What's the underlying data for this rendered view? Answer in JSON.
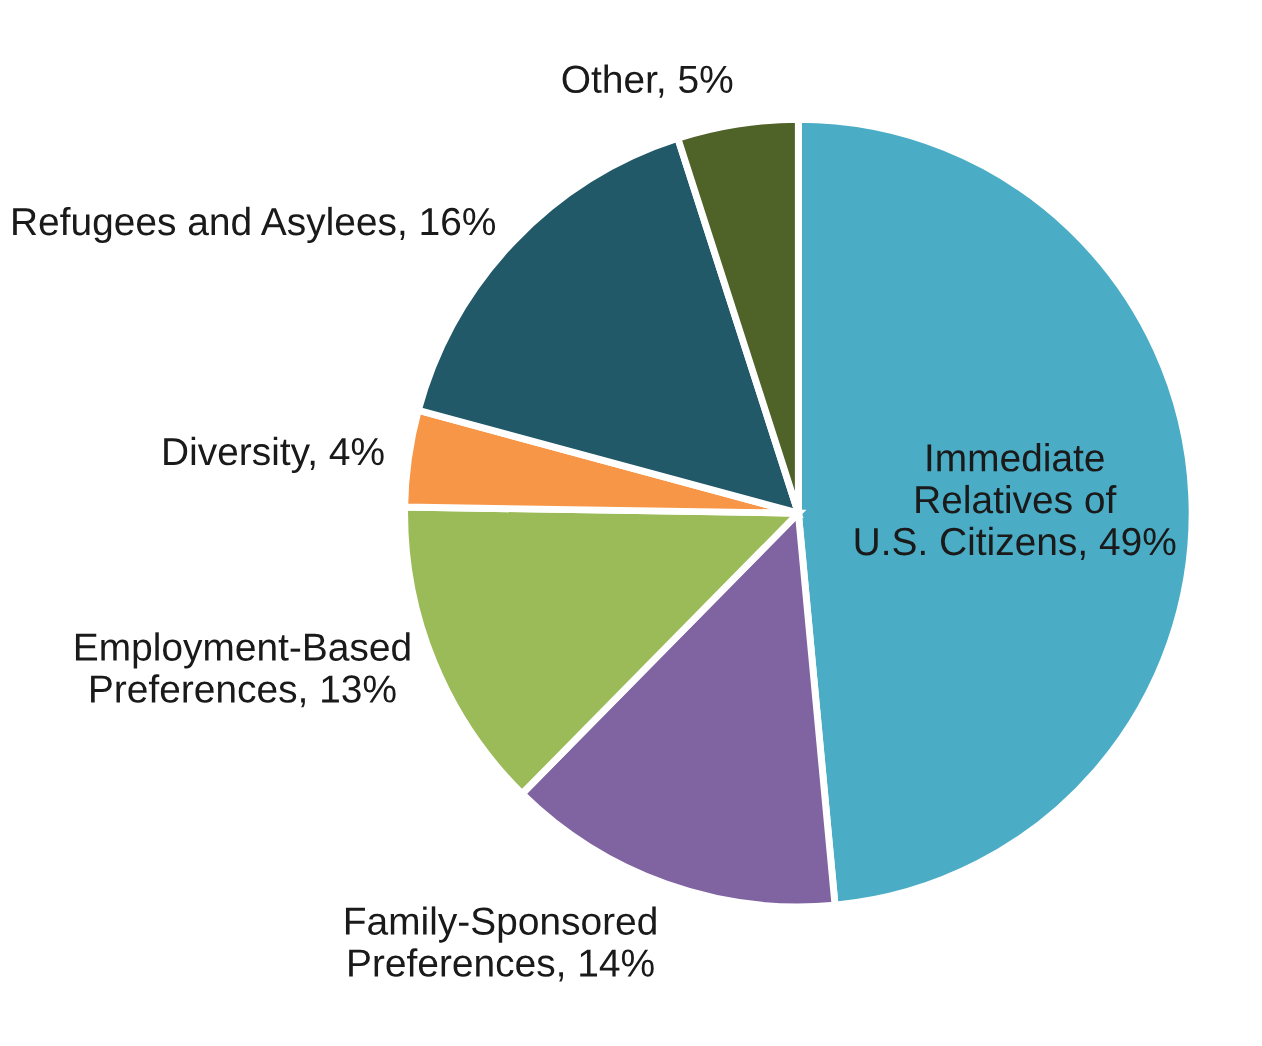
{
  "chart_data": {
    "type": "pie",
    "categories": [
      "Immediate\nRelatives of\nU.S. Citizens",
      "Family-Sponsored\nPreferences",
      "Employment-Based\nPreferences",
      "Diversity",
      "Refugees and Asylees",
      "Other"
    ],
    "values": [
      49,
      14,
      13,
      4,
      16,
      5
    ],
    "value_labels": [
      "49%",
      "14%",
      "13%",
      "4%",
      "16%",
      "5%"
    ],
    "colors": [
      "#4bacc6",
      "#8064a2",
      "#9bbb59",
      "#f79646",
      "#215968",
      "#4f6228"
    ]
  }
}
